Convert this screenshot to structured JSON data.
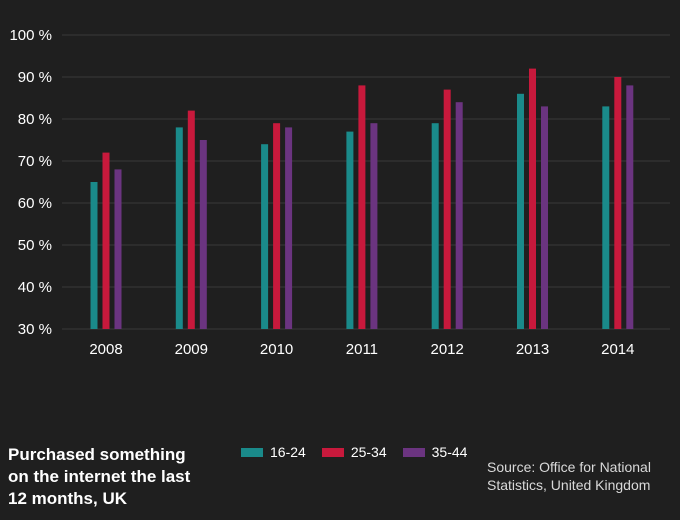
{
  "chart_data": {
    "type": "bar",
    "categories": [
      "2008",
      "2009",
      "2010",
      "2011",
      "2012",
      "2013",
      "2014"
    ],
    "series": [
      {
        "name": "16-24",
        "color": "#1a8a8a",
        "values": [
          65,
          78,
          74,
          77,
          79,
          86,
          83
        ]
      },
      {
        "name": "25-34",
        "color": "#c8193c",
        "values": [
          72,
          82,
          79,
          88,
          87,
          92,
          90
        ]
      },
      {
        "name": "35-44",
        "color": "#6b3480",
        "values": [
          68,
          75,
          78,
          79,
          84,
          83,
          88
        ]
      }
    ],
    "ylim": [
      30,
      100
    ],
    "yticks": [
      {
        "value": 30,
        "label": "30 %"
      },
      {
        "value": 40,
        "label": "40 %"
      },
      {
        "value": 50,
        "label": "50 %"
      },
      {
        "value": 60,
        "label": "60 %"
      },
      {
        "value": 70,
        "label": "70 %"
      },
      {
        "value": 80,
        "label": "80 %"
      },
      {
        "value": 90,
        "label": "90 %"
      },
      {
        "value": 100,
        "label": "100 %"
      }
    ],
    "grid": true,
    "legend_position": "bottom-center",
    "background": "#1f1f1f"
  },
  "title_lines": [
    "Purchased something",
    "on the internet the last",
    "12 months, UK"
  ],
  "source_lines": [
    "Source: Office for National",
    "Statistics, United Kingdom"
  ]
}
